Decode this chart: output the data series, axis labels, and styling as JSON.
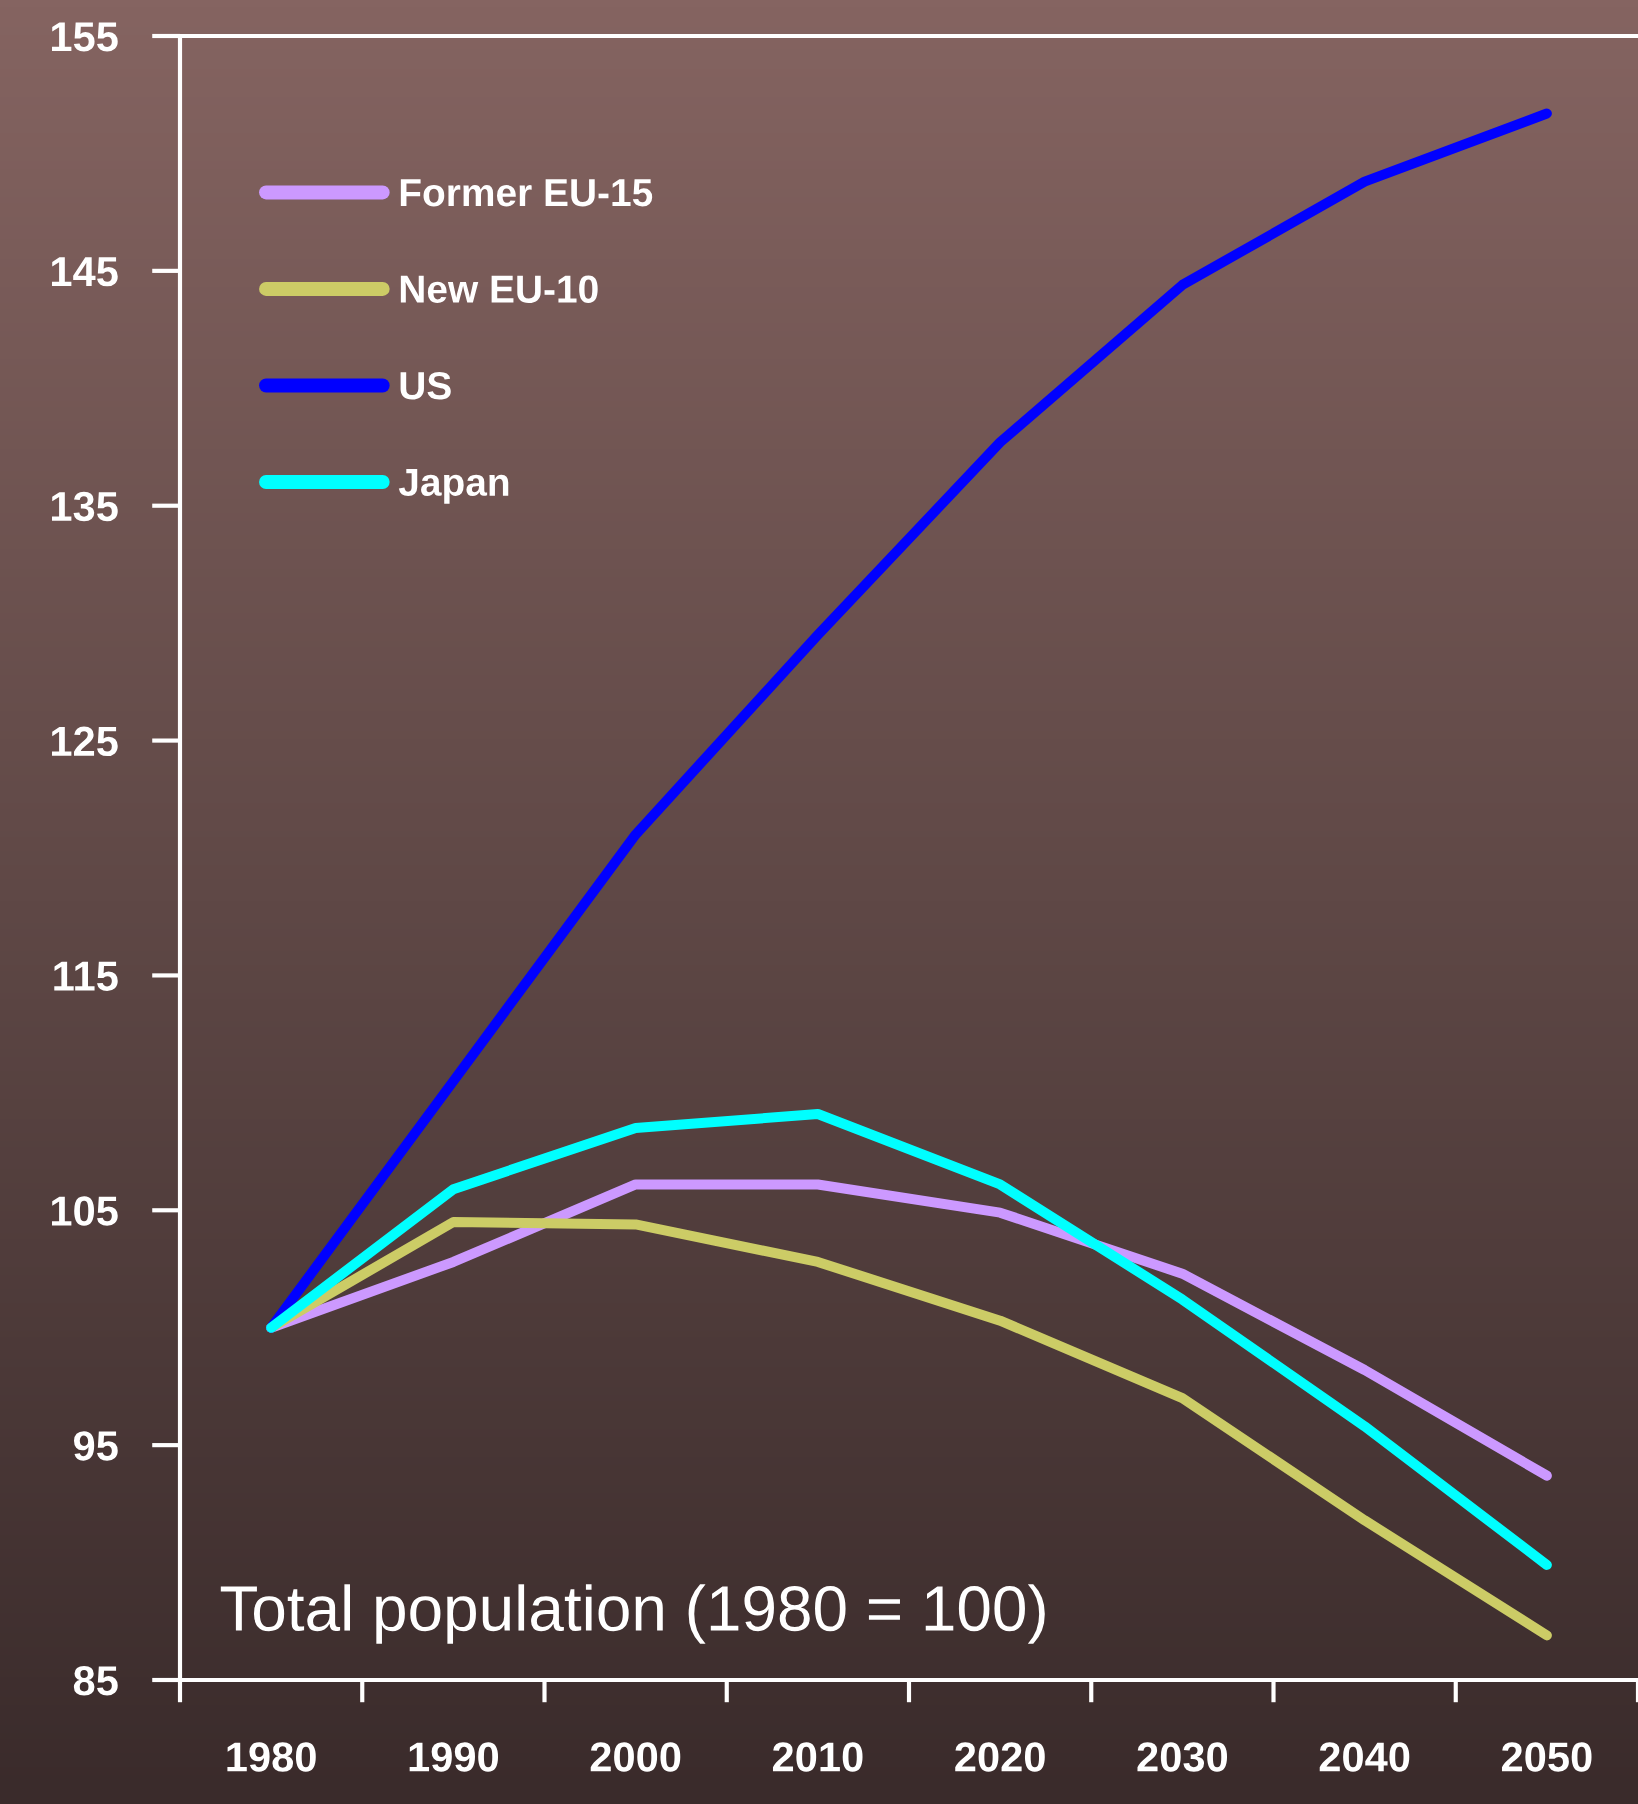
{
  "chart_data": {
    "type": "line",
    "title": "Total population (1980 = 100)",
    "categories": [
      "1980",
      "1990",
      "2000",
      "2010",
      "2020",
      "2030",
      "2040",
      "2050"
    ],
    "series": [
      {
        "name": "Former EU-15",
        "color": "#cc99ff",
        "values": [
          100,
          102.8,
          106.1,
          106.1,
          104.9,
          102.3,
          98.2,
          93.7
        ]
      },
      {
        "name": "New EU-10",
        "color": "#cccc66",
        "values": [
          100,
          104.5,
          104.4,
          102.8,
          100.3,
          97.0,
          91.8,
          86.9
        ]
      },
      {
        "name": "US",
        "color": "#0000ff",
        "values": [
          100,
          110.5,
          121.0,
          129.5,
          137.7,
          144.4,
          148.8,
          151.7
        ]
      },
      {
        "name": "Japan",
        "color": "#00ffff",
        "values": [
          100,
          105.9,
          108.5,
          109.1,
          106.1,
          101.2,
          95.8,
          89.9
        ]
      }
    ],
    "ylim": [
      85,
      155
    ],
    "yticks": [
      85,
      95,
      105,
      115,
      125,
      135,
      145,
      155
    ],
    "legend": "top left",
    "line_style": "solid",
    "marker": "none"
  }
}
